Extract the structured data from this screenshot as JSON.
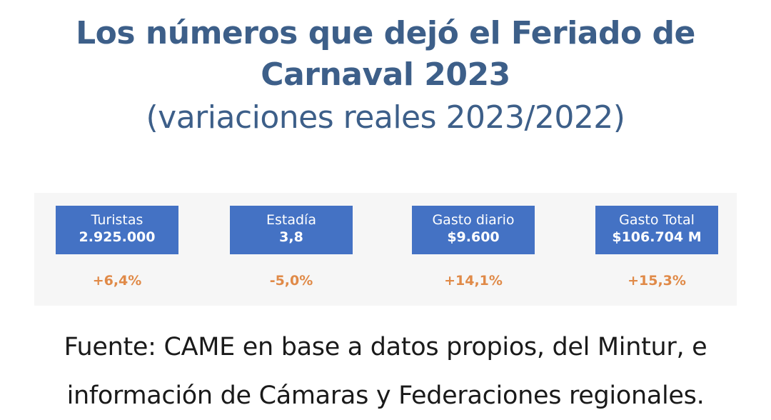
{
  "title": {
    "line1": "Los números que dejó el Feriado de",
    "line2": "Carnaval 2023",
    "subtitle": "(variaciones reales 2023/2022)"
  },
  "metrics": [
    {
      "label": "Turistas",
      "value": "2.925.000",
      "variation": "+6,4%"
    },
    {
      "label": "Estadía",
      "value": "3,8",
      "variation": "-5,0%"
    },
    {
      "label": "Gasto diario",
      "value": "$9.600",
      "variation": "+14,1%"
    },
    {
      "label": "Gasto Total",
      "value": "$106.704 M",
      "variation": "+15,3%"
    }
  ],
  "source": {
    "line1": "Fuente: CAME en base a datos propios, del Mintur, e",
    "line2": "información de Cámaras y Federaciones regionales."
  },
  "colors": {
    "title": "#3d5f89",
    "card_background": "#4472c4",
    "card_text": "#ffffff",
    "variation": "#e08a48",
    "panel_background": "#f6f6f6"
  }
}
